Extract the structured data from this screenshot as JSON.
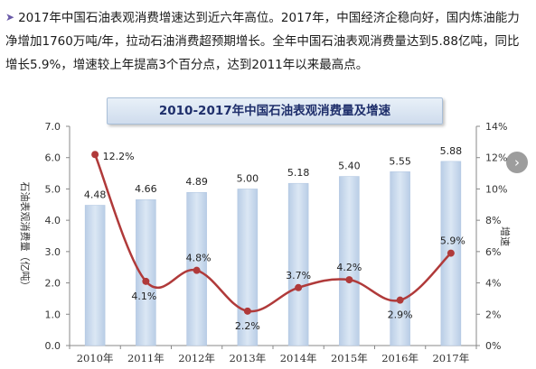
{
  "intro": {
    "bullet_icon": "arrow-bullet-icon",
    "text": "2017年中国石油表观消费增速达到近六年高位。2017年，中国经济企稳向好，国内炼油能力净增加1760万吨/年，拉动石油消费超预期增长。全年中国石油表观消费量达到5.88亿吨，同比增长5.9%，增速较上年提高3个百分点，达到2011年以来最高点。"
  },
  "nav": {
    "next_icon": "chevron-right-icon"
  },
  "chart_data": {
    "type": "bar",
    "title": "2010-2017年中国石油表观消费量及增速",
    "categories": [
      "2010年",
      "2011年",
      "2012年",
      "2013年",
      "2014年",
      "2015年",
      "2016年",
      "2017年"
    ],
    "series": [
      {
        "type": "bar",
        "axis": "left",
        "values": [
          4.48,
          4.66,
          4.89,
          5.0,
          5.18,
          5.4,
          5.55,
          5.88
        ],
        "labels": [
          "4.48",
          "4.66",
          "4.89",
          "5.00",
          "5.18",
          "5.40",
          "5.55",
          "5.88"
        ],
        "color": "#c9d9ec"
      },
      {
        "type": "line",
        "axis": "right",
        "values": [
          12.2,
          4.1,
          4.8,
          2.2,
          3.7,
          4.2,
          2.9,
          5.9
        ],
        "labels": [
          "12.2%",
          "4.1%",
          "4.8%",
          "2.2%",
          "3.7%",
          "4.2%",
          "2.9%",
          "5.9%"
        ],
        "color": "#b03a3a"
      }
    ],
    "ylabel": "石油表观消费量（亿吨）",
    "y2label": "增速",
    "ylim": [
      0,
      7
    ],
    "y2lim": [
      0,
      14
    ],
    "yticks": [
      "0.0",
      "1.0",
      "2.0",
      "3.0",
      "4.0",
      "5.0",
      "6.0",
      "7.0"
    ],
    "y2ticks": [
      "0%",
      "2%",
      "4%",
      "6%",
      "8%",
      "10%",
      "12%",
      "14%"
    ],
    "grid": false,
    "legend": "none"
  }
}
